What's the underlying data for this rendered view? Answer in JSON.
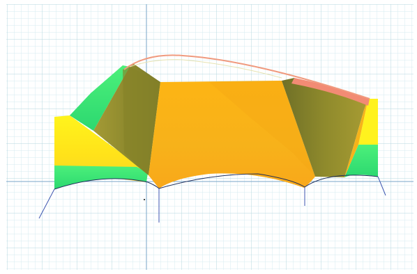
{
  "viewport": {
    "background": "#ffffff",
    "grid_minor_color": "#cfe6ec",
    "grid_major_color": "#a9d0da",
    "axis_color": "#6f9fc2"
  },
  "model": {
    "type": "3d-membrane-surface",
    "colors": {
      "main_panel": "#f7b21a",
      "shaded_panel": "#8f8a2c",
      "edge_green": "#3de47a",
      "edge_yellow": "#fff21e",
      "ridge_salmon": "#f28b74",
      "support_line": "#3d56b0"
    }
  }
}
